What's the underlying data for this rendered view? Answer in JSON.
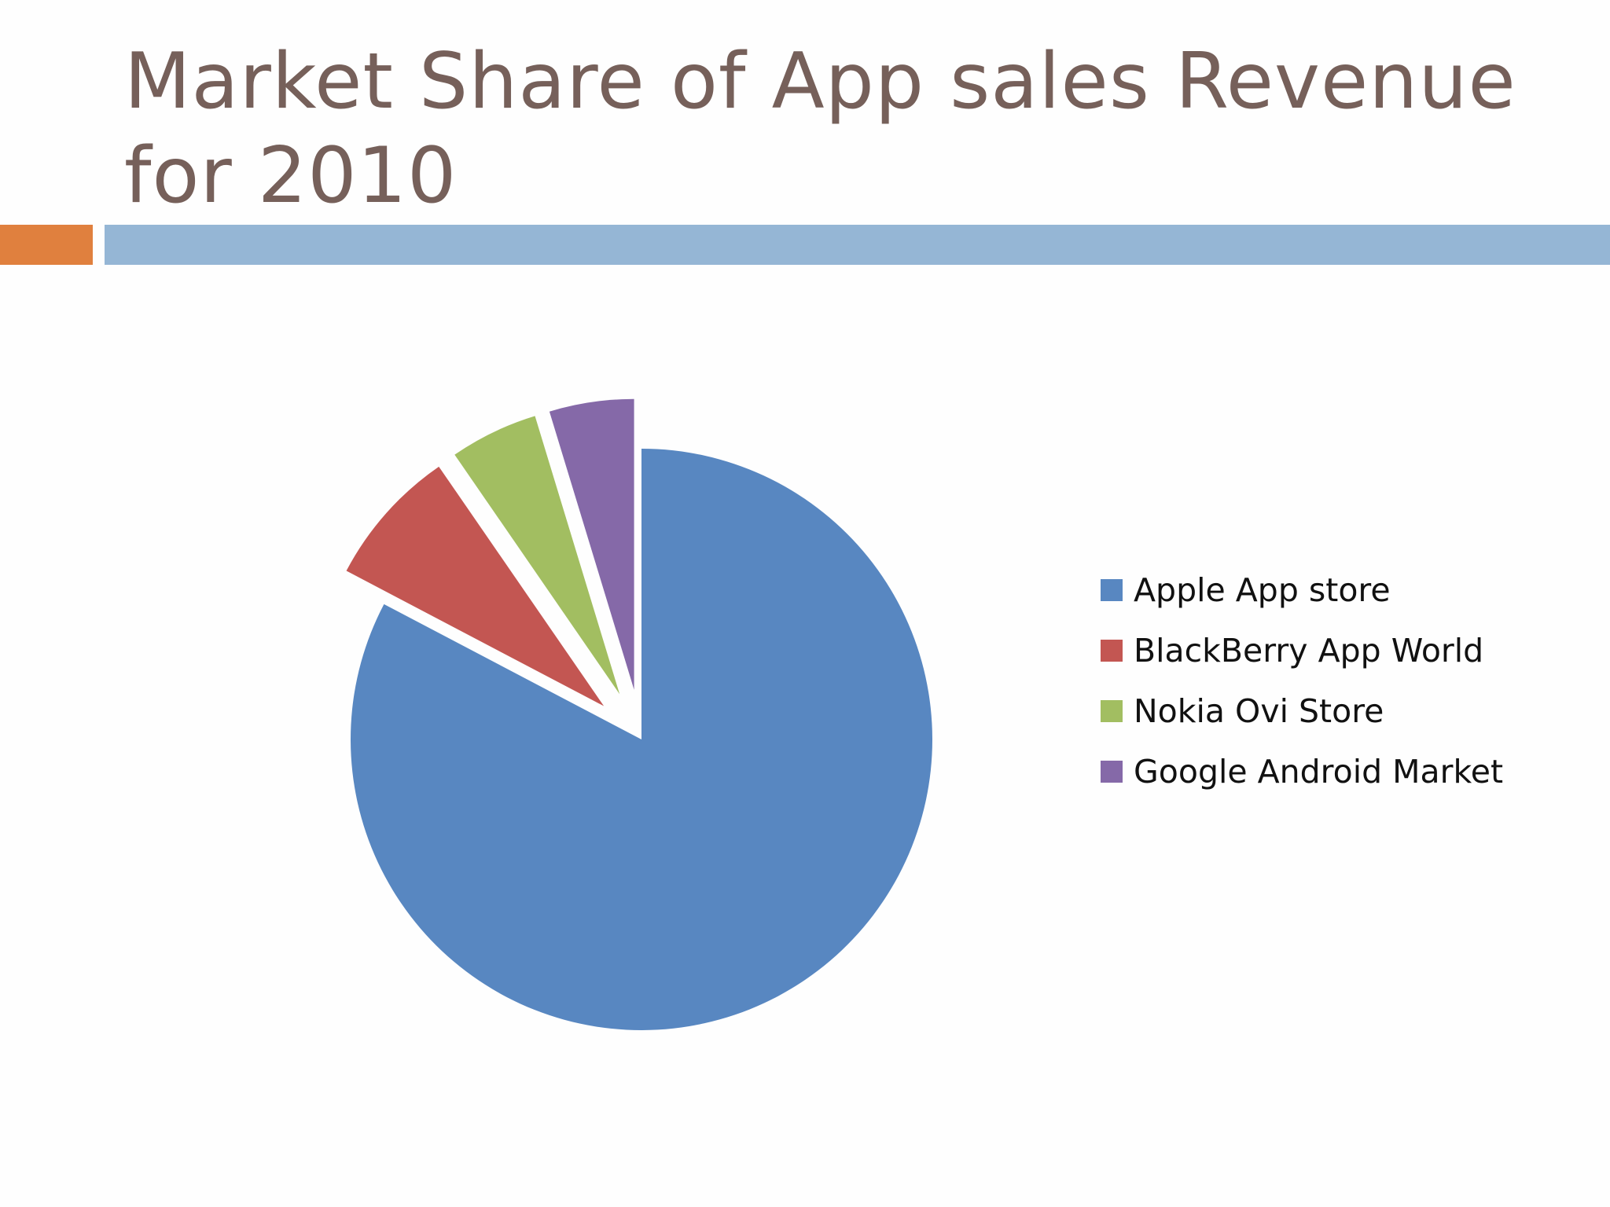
{
  "slide": {
    "title": "Market Share of App sales Revenue for 2010"
  },
  "accent_colors": {
    "orange": "#e0803e",
    "blue": "#95b6d5",
    "title": "#76605a"
  },
  "chart_data": {
    "type": "pie",
    "title": "",
    "exploded": true,
    "legend_position": "right",
    "start_angle_deg": 0,
    "direction": "clockwise",
    "categories": [
      "Apple App store",
      "BlackBerry App World",
      "Nokia Ovi Store",
      "Google Android Market"
    ],
    "values": [
      82.7,
      7.7,
      4.9,
      4.7
    ],
    "unit": "%",
    "colors": [
      "#5887c1",
      "#c35652",
      "#a2be61",
      "#8569a8"
    ],
    "exploded_slices": [
      false,
      true,
      true,
      true
    ]
  }
}
